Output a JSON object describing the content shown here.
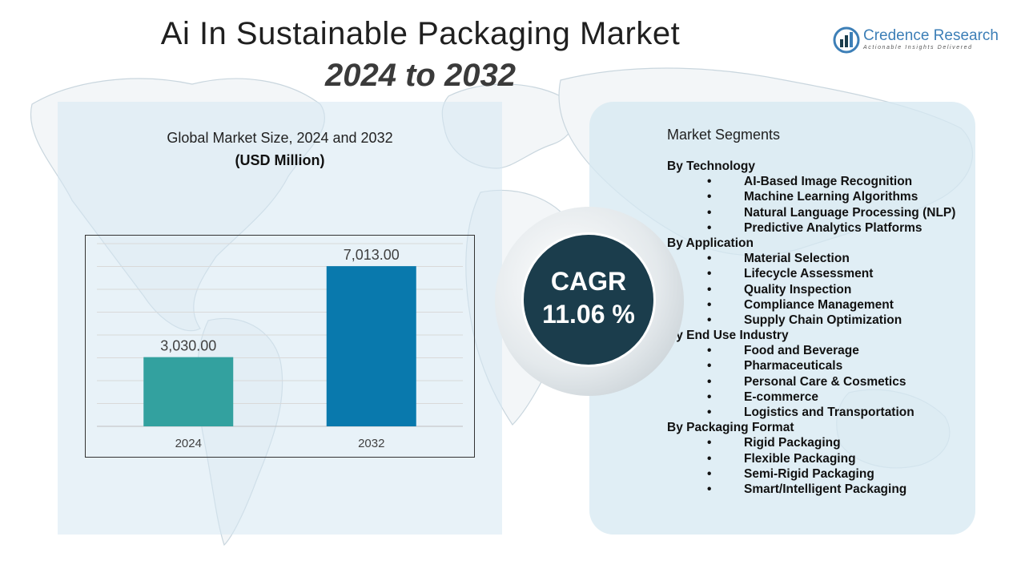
{
  "header": {
    "title": "Ai In Sustainable Packaging Market",
    "subtitle": "2024 to 2032"
  },
  "logo": {
    "name": "Credence Research",
    "tagline": "Actionable Insights Delivered",
    "icon": "chart-head-icon"
  },
  "chart_panel": {
    "title": "Global Market Size, 2024 and 2032",
    "unit": "(USD Million)"
  },
  "chart_data": {
    "type": "bar",
    "categories": [
      "2024",
      "2032"
    ],
    "values": [
      3030.0,
      7013.0
    ],
    "value_labels": [
      "3,030.00",
      "7,013.00"
    ],
    "colors": [
      "#33a19f",
      "#0979ad"
    ],
    "ylim": [
      0,
      8000
    ],
    "grid": true,
    "title": "Global Market Size, 2024 and 2032",
    "ylabel": "(USD Million)",
    "xlabel": ""
  },
  "cagr": {
    "label": "CAGR",
    "value": "11.06 %"
  },
  "segments": {
    "title": "Market Segments",
    "groups": [
      {
        "name": "By Technology",
        "items": [
          "AI-Based Image Recognition",
          "Machine Learning Algorithms",
          "Natural Language Processing (NLP)",
          "Predictive Analytics Platforms"
        ]
      },
      {
        "name": "By Application",
        "items": [
          "Material Selection",
          "Lifecycle Assessment",
          "Quality Inspection",
          "Compliance Management",
          "Supply Chain Optimization"
        ]
      },
      {
        "name": "By End Use Industry",
        "items": [
          "Food and Beverage",
          "Pharmaceuticals",
          "Personal Care & Cosmetics",
          "E-commerce",
          "Logistics and Transportation"
        ]
      },
      {
        "name": "By Packaging Format",
        "items": [
          "Rigid Packaging",
          "Flexible Packaging",
          "Semi-Rigid Packaging",
          "Smart/Intelligent Packaging"
        ]
      }
    ]
  }
}
